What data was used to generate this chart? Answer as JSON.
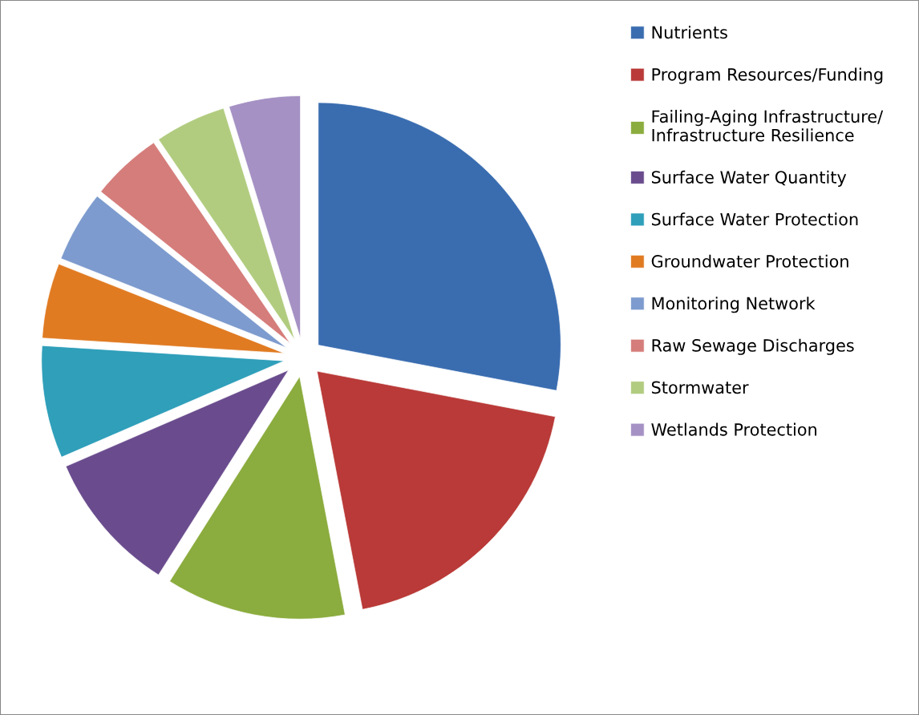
{
  "chart_data": {
    "type": "pie",
    "categories": [
      "Nutrients",
      "Program Resources/Funding",
      "Failing-Aging Infrastructure/\nInfrastructure Resilience",
      "Surface Water Quantity",
      "Surface Water Protection",
      "Groundwater Protection",
      "Monitoring Network",
      "Raw Sewage Discharges",
      "Stormwater",
      "Wetlands Protection"
    ],
    "values": [
      28,
      19,
      12,
      9.5,
      7.5,
      5,
      4.75,
      4.75,
      4.75,
      4.75
    ],
    "colors": [
      "#3a6db0",
      "#b93a38",
      "#8bac3e",
      "#6a4c8e",
      "#2f9fba",
      "#e07b22",
      "#7d9bce",
      "#d57d7b",
      "#b1cc7f",
      "#a591c4"
    ],
    "legend": "right"
  }
}
